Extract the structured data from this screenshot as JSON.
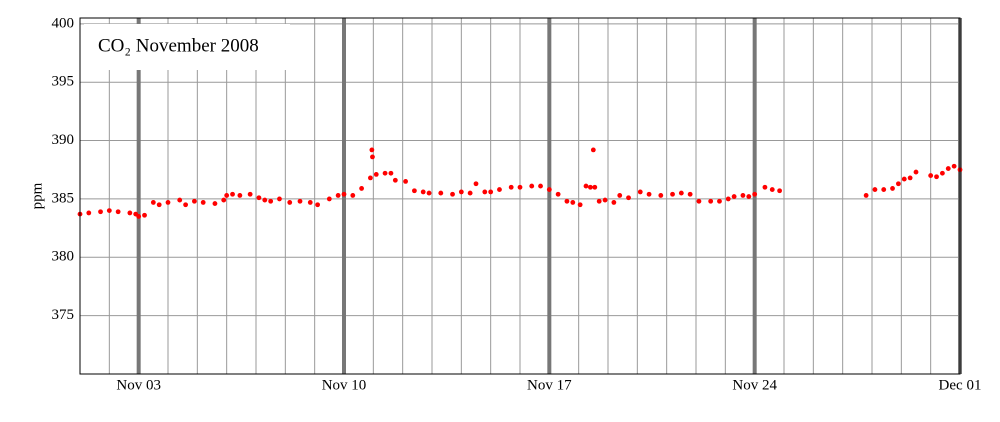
{
  "chart_data": {
    "type": "scatter",
    "title": "CO₂ November 2008",
    "ylabel": "ppm",
    "x": [
      1.0,
      1.3,
      1.7,
      2.0,
      2.3,
      2.7,
      2.9,
      3.0,
      3.2,
      3.5,
      3.7,
      4.0,
      4.4,
      4.6,
      4.9,
      5.2,
      5.6,
      5.9,
      6.0,
      6.2,
      6.45,
      6.8,
      7.1,
      7.3,
      7.5,
      7.8,
      8.15,
      8.5,
      8.85,
      9.1,
      9.5,
      9.8,
      10.0,
      10.3,
      10.6,
      10.9,
      10.95,
      10.97,
      11.1,
      11.4,
      11.6,
      11.75,
      12.1,
      12.4,
      12.7,
      12.9,
      13.3,
      13.7,
      14.0,
      14.3,
      14.5,
      14.8,
      15.0,
      15.3,
      15.7,
      16.0,
      16.4,
      16.7,
      17.0,
      17.3,
      17.6,
      17.8,
      18.05,
      18.25,
      18.4,
      18.5,
      18.55,
      18.7,
      18.9,
      19.2,
      19.4,
      19.7,
      20.1,
      20.4,
      20.8,
      21.2,
      21.5,
      21.8,
      22.1,
      22.5,
      22.8,
      23.1,
      23.3,
      23.6,
      23.8,
      24.0,
      24.35,
      24.6,
      24.85,
      27.8,
      28.1,
      28.4,
      28.7,
      28.9,
      29.1,
      29.3,
      29.5,
      30.0,
      30.2,
      30.4,
      30.6,
      30.8,
      31.0
    ],
    "series": [
      {
        "name": "CO₂",
        "color": "#ff0000",
        "values": [
          383.7,
          383.8,
          383.9,
          384.0,
          383.9,
          383.8,
          383.7,
          383.5,
          383.6,
          384.7,
          384.5,
          384.7,
          384.9,
          384.5,
          384.8,
          384.7,
          384.6,
          384.9,
          385.3,
          385.4,
          385.3,
          385.4,
          385.1,
          384.9,
          384.8,
          385.0,
          384.7,
          384.8,
          384.7,
          384.5,
          385.0,
          385.3,
          385.4,
          385.3,
          385.9,
          386.8,
          389.2,
          388.6,
          387.1,
          387.2,
          387.2,
          386.6,
          386.5,
          385.7,
          385.6,
          385.5,
          385.5,
          385.4,
          385.6,
          385.5,
          386.3,
          385.6,
          385.6,
          385.8,
          386.0,
          386.0,
          386.1,
          386.1,
          385.8,
          385.4,
          384.8,
          384.7,
          384.5,
          386.1,
          386.0,
          389.2,
          386.0,
          384.8,
          384.9,
          384.7,
          385.3,
          385.1,
          385.6,
          385.4,
          385.3,
          385.4,
          385.5,
          385.4,
          384.8,
          384.8,
          384.8,
          385.0,
          385.2,
          385.3,
          385.2,
          385.4,
          386.0,
          385.8,
          385.7,
          385.3,
          385.8,
          385.8,
          385.9,
          386.3,
          386.7,
          386.8,
          387.3,
          387.0,
          386.9,
          387.2,
          387.6,
          387.8,
          387.5
        ]
      }
    ],
    "xlim": [
      1,
      31
    ],
    "xticks": [
      {
        "value": 3,
        "label": "Nov 03"
      },
      {
        "value": 10,
        "label": "Nov 10"
      },
      {
        "value": 17,
        "label": "Nov 17"
      },
      {
        "value": 24,
        "label": "Nov 24"
      },
      {
        "value": 31,
        "label": "Dec 01"
      }
    ],
    "minor_xticks": [
      2,
      3,
      4,
      5,
      6,
      7,
      8,
      9,
      10,
      11,
      12,
      13,
      14,
      15,
      16,
      17,
      18,
      19,
      20,
      21,
      22,
      23,
      24,
      25,
      26,
      27,
      28,
      29,
      30
    ],
    "ylim": [
      370,
      400.5
    ],
    "yticks": [
      375,
      380,
      385,
      390,
      395,
      400
    ],
    "grid": true
  }
}
